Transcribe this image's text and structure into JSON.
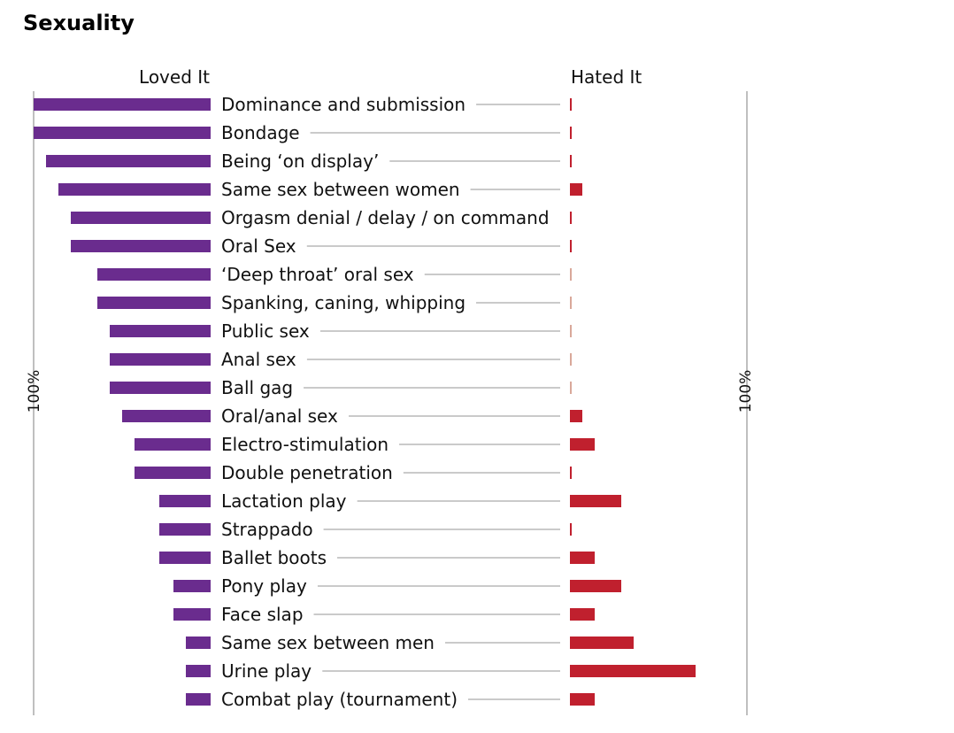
{
  "chart_data": {
    "type": "bar",
    "title": "Sexuality",
    "left_header": "Loved It",
    "right_header": "Hated It",
    "left_axis_label": "100%",
    "right_axis_label": "100%",
    "xlim": [
      0,
      100
    ],
    "categories": [
      "Dominance and submission",
      "Bondage",
      "Being ‘on display’",
      "Same sex between women",
      "Orgasm denial / delay / on command",
      "Oral Sex",
      "‘Deep throat’ oral sex",
      "Spanking, caning, whipping",
      "Public sex",
      "Anal sex",
      "Ball gag",
      "Oral/anal sex",
      "Electro-stimulation",
      "Double penetration",
      "Lactation play",
      "Strappado",
      "Ballet boots",
      "Pony play",
      "Face slap",
      "Same sex between men",
      "Urine play",
      "Combat play (tournament)"
    ],
    "series": [
      {
        "name": "Loved It",
        "color": "#6a2c8e",
        "values": [
          100,
          100,
          93,
          86,
          79,
          79,
          64,
          64,
          57,
          57,
          57,
          50,
          43,
          43,
          29,
          29,
          29,
          21,
          21,
          14,
          14,
          14
        ]
      },
      {
        "name": "Hated It",
        "color": "#c0202e",
        "values": [
          1,
          1,
          1,
          7,
          1,
          1,
          0.5,
          0.5,
          0.5,
          0.5,
          0.5,
          7,
          14,
          1,
          29,
          1,
          14,
          29,
          14,
          36,
          71,
          14
        ]
      }
    ],
    "colors": {
      "loved": "#6a2c8e",
      "hated": "#c0202e",
      "faint": "#d9a89a",
      "leader": "#b8b8b8",
      "axis": "#bfbfbf"
    }
  }
}
